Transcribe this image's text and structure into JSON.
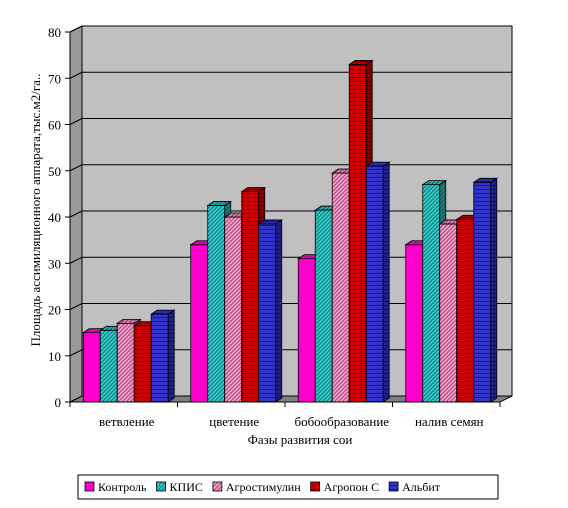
{
  "chart_data": {
    "type": "bar",
    "style": "3d-clustered-column",
    "categories": [
      "ветвление",
      "цветение",
      "бобообразование",
      "налив семян"
    ],
    "series": [
      {
        "name": "Контроль",
        "color": "#ff00cc",
        "pattern": "solid",
        "values": [
          15,
          34,
          31,
          34
        ]
      },
      {
        "name": "КПИС",
        "color": "#33cccc",
        "pattern": "hatch-diagonal",
        "values": [
          15.5,
          42.5,
          41.5,
          47
        ]
      },
      {
        "name": "Агростимулин",
        "color": "#ff99cc",
        "pattern": "hatch-diagonal",
        "values": [
          17,
          40,
          49.5,
          38.5
        ]
      },
      {
        "name": "Агропон С",
        "color": "#cc0000",
        "pattern": "hatch-horizontal",
        "values": [
          16.5,
          45.5,
          73,
          39.5
        ]
      },
      {
        "name": "Альбит",
        "color": "#3333cc",
        "pattern": "hatch-horizontal",
        "values": [
          19,
          38.5,
          51,
          47.5
        ]
      }
    ],
    "xlabel": "Фазы развития сои",
    "ylabel": "Площадь ассимиляционного аппарата,тыс.м2/га..",
    "ylim": [
      0,
      80
    ],
    "yticks": [
      0,
      10,
      20,
      30,
      40,
      50,
      60,
      70,
      80
    ],
    "grid": true,
    "plot_background": "#c0c0c0",
    "legend_position": "bottom"
  }
}
